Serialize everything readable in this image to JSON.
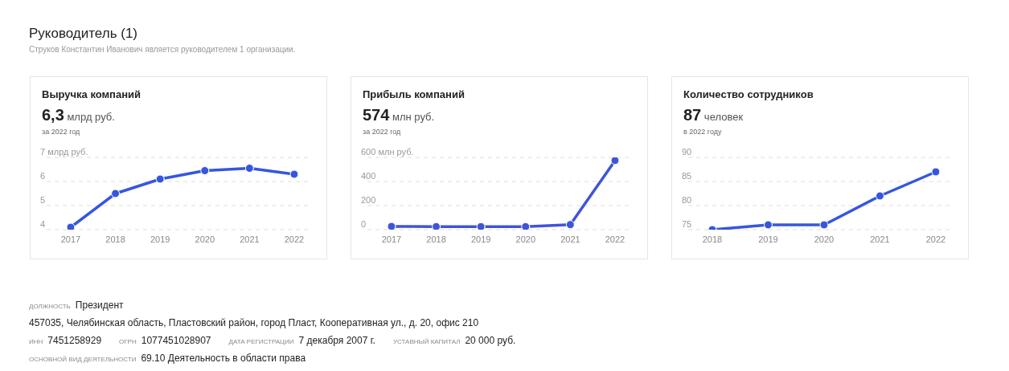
{
  "chart_data": [
    {
      "type": "other",
      "title": "Руководитель (1)",
      "subtitle": "Струков Константин Иванович является руководителем 1 организации."
    },
    {
      "type": "line",
      "title": "Выручка компаний",
      "subtitle": "6,3 млрд руб.",
      "annotations": [
        "за 2022 год"
      ],
      "categories": [
        "2017",
        "2018",
        "2019",
        "2020",
        "2021",
        "2022"
      ],
      "series": [
        {
          "color": "#3556e0",
          "values": [
            4.1,
            5.5,
            6.1,
            6.45,
            6.55,
            6.3
          ]
        }
      ],
      "ylim": [
        4,
        7
      ],
      "yticks": [
        4,
        5,
        6,
        {
          "value": 7,
          "label": "7 млрд руб."
        }
      ],
      "grid": "y",
      "marker": "circle"
    },
    {
      "type": "line",
      "title": "Прибыль компаний",
      "subtitle": "574 млн руб.",
      "annotations": [
        "за 2022 год"
      ],
      "categories": [
        "2017",
        "2018",
        "2019",
        "2020",
        "2021",
        "2022"
      ],
      "series": [
        {
          "color": "#3f55d8",
          "values": [
            27,
            25,
            25,
            25,
            42,
            574
          ]
        }
      ],
      "ylim": [
        0,
        600
      ],
      "yticks": [
        0,
        200,
        400,
        {
          "value": 600,
          "label": "600 млн руб."
        }
      ],
      "grid": "y",
      "marker": "circle"
    },
    {
      "type": "line",
      "title": "Количество сотрудников",
      "subtitle": "87 человек",
      "annotations": [
        "в 2022 году"
      ],
      "categories": [
        "2018",
        "2019",
        "2020",
        "2021",
        "2022"
      ],
      "series": [
        {
          "color": "#3556e0",
          "values": [
            75,
            76,
            76,
            82,
            87
          ]
        }
      ],
      "ylim": [
        75,
        90
      ],
      "yticks": [
        75,
        80,
        85,
        90
      ],
      "grid": "y",
      "marker": "circle"
    },
    {
      "type": "other",
      "annotations": [
        "ДОЛЖНОСТЬ",
        "Президент",
        "457035, Челябинская область, Пластовский район, город Пласт, Кооперативная ул., д. 20, офис 210",
        "ИНН",
        "7451258929",
        "ОГРН",
        "1077451028907",
        "ДАТА РЕГИСТРАЦИИ",
        "7 декабря 2007 г.",
        "УСТАВНЫЙ КАПИТАЛ",
        "20 000 руб.",
        "ОСНОВНОЙ ВИД ДЕЯТЕЛЬНОСТИ",
        "69.10 Деятельность в области права"
      ]
    }
  ]
}
